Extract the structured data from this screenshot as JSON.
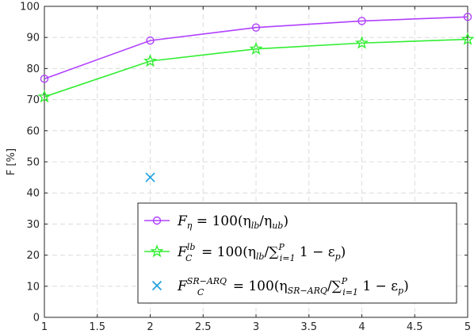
{
  "chart_data": {
    "type": "line",
    "title": "",
    "xlabel": "",
    "ylabel": "F [%]",
    "xlim": [
      1,
      5
    ],
    "ylim": [
      0,
      100
    ],
    "grid": true,
    "legend_position": "bottom-right",
    "x_ticks": [
      "1",
      "1.5",
      "2",
      "2.5",
      "3",
      "3.5",
      "4",
      "4.5",
      "5"
    ],
    "y_ticks": [
      "0",
      "10",
      "20",
      "30",
      "40",
      "50",
      "60",
      "70",
      "80",
      "90",
      "100"
    ],
    "series": [
      {
        "name": "F_η = 100(η_lb/η_ub)",
        "legend_main": "F",
        "legend_sub": "η",
        "legend_rest": " = 100(η",
        "legend_sub2": "lb",
        "legend_rest2": "/η",
        "legend_sub3": "ub",
        "legend_rest3": ")",
        "color": "#b040ff",
        "marker": "circle",
        "line": true,
        "x": [
          1,
          2,
          3,
          4,
          5
        ],
        "y": [
          76.7,
          89.0,
          93.2,
          95.3,
          96.6
        ]
      },
      {
        "name": "F_C^lb = 100(η_lb/∑_{i=1}^P 1 − ε_p)",
        "legend_main": "F",
        "legend_sub": "C",
        "legend_sup": "lb",
        "legend_rest": " = 100(η",
        "legend_sub2": "lb",
        "legend_rest2": "/",
        "legend_sum": "∑",
        "legend_sum_sub": "i=1",
        "legend_sum_sup": "P",
        "legend_rest3": " 1 − ε",
        "legend_sub3": "p",
        "legend_rest4": ")",
        "color": "#33ee33",
        "marker": "star",
        "line": true,
        "x": [
          1,
          2,
          3,
          4,
          5
        ],
        "y": [
          70.9,
          82.4,
          86.3,
          88.2,
          89.4
        ]
      },
      {
        "name": "F_C^{SR−ARQ} = 100(η_{SR−ARQ}/∑_{i=1}^P 1 − ε_p)",
        "legend_main": "F",
        "legend_sub": "C",
        "legend_sup": "SR−ARQ",
        "legend_rest": " = 100(η",
        "legend_sub2": "SR−ARQ",
        "legend_rest2": "/",
        "legend_sum": "∑",
        "legend_sum_sub": "i=1",
        "legend_sum_sup": "P",
        "legend_rest3": " 1 − ε",
        "legend_sub3": "p",
        "legend_rest4": ")",
        "color": "#1a9fe0",
        "marker": "x",
        "line": false,
        "x": [
          2
        ],
        "y": [
          45.0
        ]
      }
    ]
  }
}
